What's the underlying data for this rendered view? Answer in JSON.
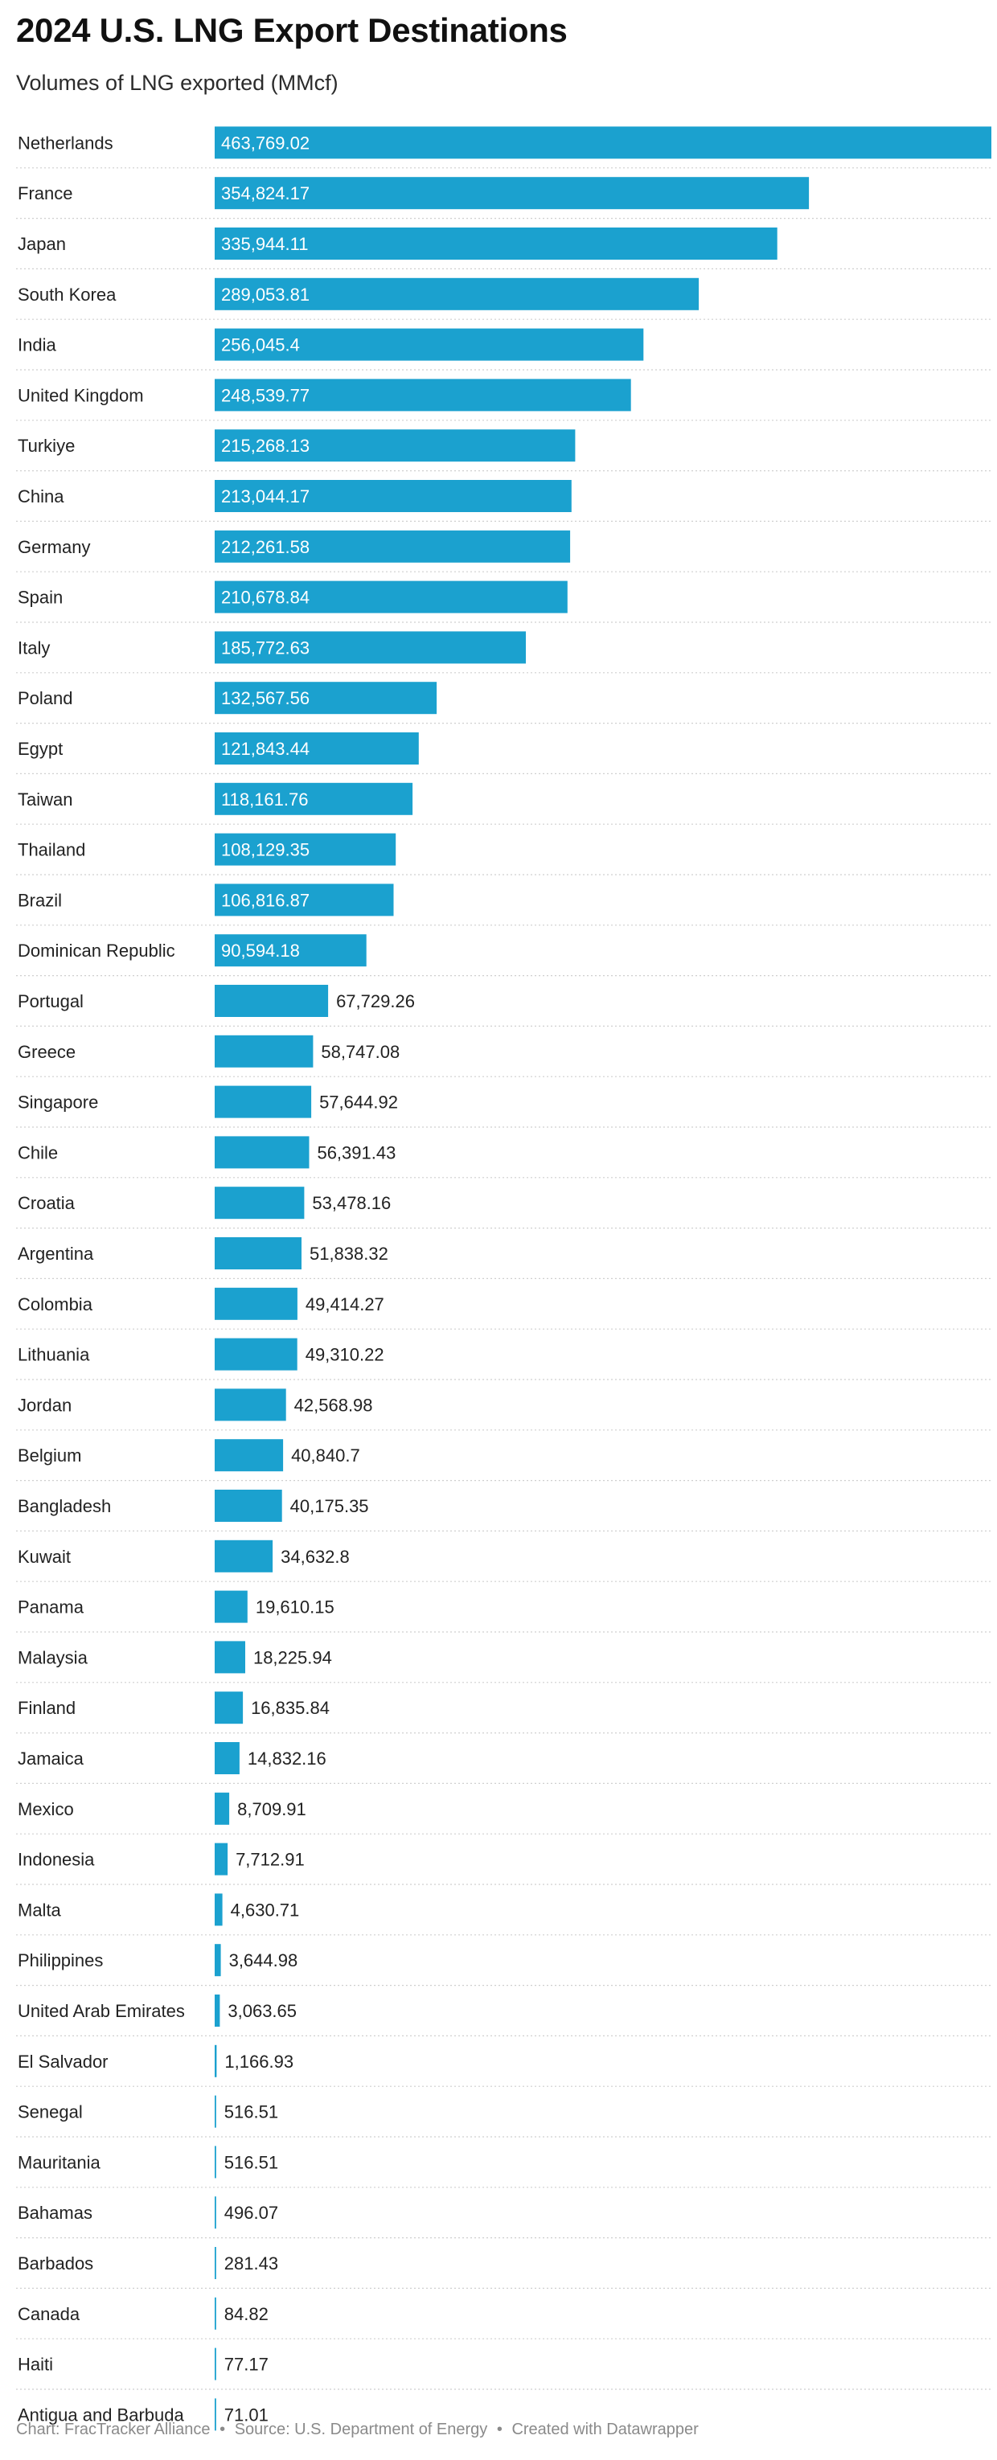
{
  "chart_data": {
    "type": "bar",
    "orientation": "horizontal",
    "title": "2024 U.S. LNG Export Destinations",
    "subtitle": "Volumes of LNG exported (MMcf)",
    "categories": [
      "Netherlands",
      "France",
      "Japan",
      "South Korea",
      "India",
      "United Kingdom",
      "Turkiye",
      "China",
      "Germany",
      "Spain",
      "Italy",
      "Poland",
      "Egypt",
      "Taiwan",
      "Thailand",
      "Brazil",
      "Dominican Republic",
      "Portugal",
      "Greece",
      "Singapore",
      "Chile",
      "Croatia",
      "Argentina",
      "Colombia",
      "Lithuania",
      "Jordan",
      "Belgium",
      "Bangladesh",
      "Kuwait",
      "Panama",
      "Malaysia",
      "Finland",
      "Jamaica",
      "Mexico",
      "Indonesia",
      "Malta",
      "Philippines",
      "United Arab Emirates",
      "El Salvador",
      "Senegal",
      "Mauritania",
      "Bahamas",
      "Barbados",
      "Canada",
      "Haiti",
      "Antigua and Barbuda"
    ],
    "values": [
      463769.02,
      354824.17,
      335944.11,
      289053.81,
      256045.4,
      248539.77,
      215268.13,
      213044.17,
      212261.58,
      210678.84,
      185772.63,
      132567.56,
      121843.44,
      118161.76,
      108129.35,
      106816.87,
      90594.18,
      67729.26,
      58747.08,
      57644.92,
      56391.43,
      53478.16,
      51838.32,
      49414.27,
      49310.22,
      42568.98,
      40840.7,
      40175.35,
      34632.8,
      19610.15,
      18225.94,
      16835.84,
      14832.16,
      8709.91,
      7712.91,
      4630.71,
      3644.98,
      3063.65,
      1166.93,
      516.51,
      516.51,
      496.07,
      281.43,
      84.82,
      77.17,
      71.01
    ],
    "value_labels": [
      "463,769.02",
      "354,824.17",
      "335,944.11",
      "289,053.81",
      "256,045.4",
      "248,539.77",
      "215,268.13",
      "213,044.17",
      "212,261.58",
      "210,678.84",
      "185,772.63",
      "132,567.56",
      "121,843.44",
      "118,161.76",
      "108,129.35",
      "106,816.87",
      "90,594.18",
      "67,729.26",
      "58,747.08",
      "57,644.92",
      "56,391.43",
      "53,478.16",
      "51,838.32",
      "49,414.27",
      "49,310.22",
      "42,568.98",
      "40,840.7",
      "40,175.35",
      "34,632.8",
      "19,610.15",
      "18,225.94",
      "16,835.84",
      "14,832.16",
      "8,709.91",
      "7,712.91",
      "4,630.71",
      "3,644.98",
      "3,063.65",
      "1,166.93",
      "516.51",
      "516.51",
      "496.07",
      "281.43",
      "84.82",
      "77.17",
      "71.01"
    ],
    "xlim": [
      0,
      463769.02
    ],
    "bar_color": "#1ba1cf",
    "grid": false,
    "legend": "none"
  },
  "footer": {
    "chart_credit": "Chart: FracTracker Alliance",
    "source": "Source: U.S. Department of Energy",
    "created_with": "Created with Datawrapper",
    "separator": "•"
  }
}
